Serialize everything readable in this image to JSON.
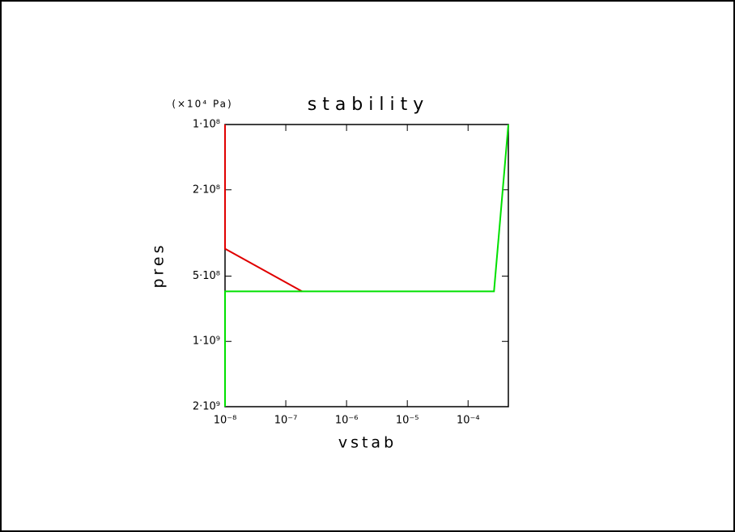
{
  "chart_data": {
    "type": "line",
    "title": "stability",
    "x_label": "vstab",
    "y_label": "pres",
    "y_unit": "(×10⁴ Pa)",
    "xscale": "log",
    "yscale": "log",
    "yaxis_inverted": true,
    "xlim": [
      1e-08,
      0.00046
    ],
    "xticks": [
      {
        "value": 1e-08,
        "label": "10⁻⁸"
      },
      {
        "value": 1e-07,
        "label": "10⁻⁷"
      },
      {
        "value": 1e-06,
        "label": "10⁻⁶"
      },
      {
        "value": 1e-05,
        "label": "10⁻⁵"
      },
      {
        "value": 0.0001,
        "label": "10⁻⁴"
      }
    ],
    "ylim": [
      100000000.0,
      2000000000.0
    ],
    "yticks": [
      {
        "value": 100000000.0,
        "label": "1·10⁸"
      },
      {
        "value": 200000000.0,
        "label": "2·10⁸"
      },
      {
        "value": 500000000.0,
        "label": "5·10⁸"
      },
      {
        "value": 1000000000.0,
        "label": "1·10⁹"
      },
      {
        "value": 2000000000.0,
        "label": "2·10⁹"
      }
    ],
    "series": [
      {
        "color": "#e00000",
        "x": [
          1e-08,
          1e-08,
          1.85e-07
        ],
        "values": [
          100000000.0,
          374000000.0,
          588000000.0
        ]
      },
      {
        "color": "#00e000",
        "x": [
          1e-08,
          1e-08,
          0.000267,
          0.00046
        ],
        "values": [
          2000000000.0,
          588000000.0,
          588000000.0,
          100000000.0
        ]
      }
    ]
  }
}
